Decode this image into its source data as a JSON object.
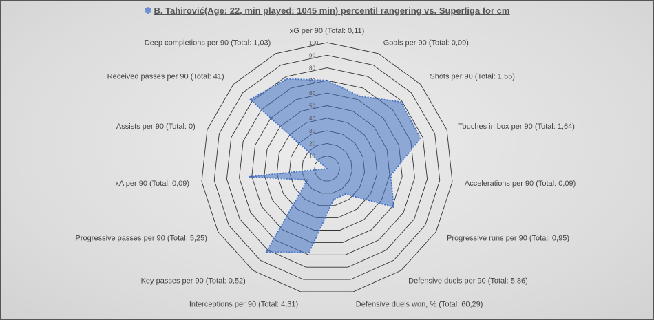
{
  "chart_data": {
    "type": "radar",
    "title": "B. Tahirović(Age: 22, min played: 1045 min) percentil rangering vs. Superliga for cm",
    "title_icon": "gear-icon",
    "rlim": [
      0,
      100
    ],
    "ticks": [
      "10",
      "20",
      "30",
      "40",
      "50",
      "60",
      "70",
      "80",
      "90",
      "100"
    ],
    "categories": [
      "xG per 90 (Total: 0,11)",
      "Goals per 90 (Total: 0,09)",
      "Shots per 90 (Total: 1,55)",
      "Touches in box per 90 (Total: 1,64)",
      "Accelerations per 90 (Total: 0,09)",
      "Progressive runs per 90 (Total: 0,95)",
      "Defensive duels per 90 (Total: 5,86)",
      "Defensive duels won, % (Total: 60,29)",
      "Interceptions per 90 (Total: 4,31)",
      "Key passes per 90 (Total: 0,52)",
      "Progressive passes per 90 (Total: 5,25)",
      "xA per 90 (Total: 0,09)",
      "Assists per 90 (Total: 0)",
      "Received passes per 90 (Total: 41)",
      "Deep completions per 90 (Total: 1,03)"
    ],
    "series": [
      {
        "name": "Percentile",
        "values": [
          70,
          63,
          79,
          78,
          51,
          61,
          25,
          25,
          68,
          82,
          18,
          62,
          0,
          82,
          78
        ],
        "color": "#4472c4"
      }
    ],
    "grid": true
  }
}
